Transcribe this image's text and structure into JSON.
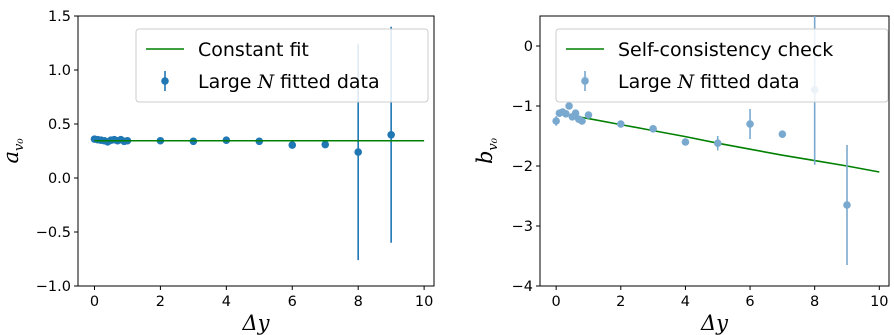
{
  "chart_data": [
    {
      "type": "scatter",
      "panel": "left",
      "title": "",
      "xlabel": "Δy",
      "ylabel_main": "a",
      "ylabel_sub": "v₀",
      "xlim": [
        -0.5,
        10.3
      ],
      "ylim": [
        -1.0,
        1.5
      ],
      "xticks": [
        0,
        2,
        4,
        6,
        8,
        10
      ],
      "xtick_labels": [
        "0",
        "2",
        "4",
        "6",
        "8",
        "10"
      ],
      "yticks": [
        -1.0,
        -0.5,
        0.0,
        0.5,
        1.0,
        1.5
      ],
      "ytick_labels": [
        "−1.0",
        "−0.5",
        "0.0",
        "0.5",
        "1.0",
        "1.5"
      ],
      "grid": false,
      "legend_position": "top-right",
      "legend": {
        "line_label": "Constant fit",
        "points_label_pre": "Large ",
        "points_label_var": "N",
        "points_label_post": " fitted data"
      },
      "colors": {
        "points": "#1f77b4",
        "line": "#008000"
      },
      "line": {
        "x": [
          0,
          10
        ],
        "y": [
          0.345,
          0.345
        ]
      },
      "points": [
        {
          "x": 0.0,
          "y": 0.36,
          "err": 0.01
        },
        {
          "x": 0.1,
          "y": 0.355,
          "err": 0.01
        },
        {
          "x": 0.2,
          "y": 0.35,
          "err": 0.01
        },
        {
          "x": 0.3,
          "y": 0.345,
          "err": 0.01
        },
        {
          "x": 0.4,
          "y": 0.335,
          "err": 0.01
        },
        {
          "x": 0.5,
          "y": 0.35,
          "err": 0.01
        },
        {
          "x": 0.6,
          "y": 0.355,
          "err": 0.01
        },
        {
          "x": 0.7,
          "y": 0.345,
          "err": 0.01
        },
        {
          "x": 0.8,
          "y": 0.355,
          "err": 0.01
        },
        {
          "x": 0.9,
          "y": 0.34,
          "err": 0.01
        },
        {
          "x": 1.0,
          "y": 0.345,
          "err": 0.01
        },
        {
          "x": 2.0,
          "y": 0.345,
          "err": 0.01
        },
        {
          "x": 3.0,
          "y": 0.34,
          "err": 0.01
        },
        {
          "x": 4.0,
          "y": 0.35,
          "err": 0.01
        },
        {
          "x": 5.0,
          "y": 0.34,
          "err": 0.01
        },
        {
          "x": 6.0,
          "y": 0.305,
          "err": 0.02
        },
        {
          "x": 7.0,
          "y": 0.31,
          "err": 0.02
        },
        {
          "x": 8.0,
          "y": 0.24,
          "err": 1.0
        },
        {
          "x": 9.0,
          "y": 0.4,
          "err": 1.0
        }
      ]
    },
    {
      "type": "scatter",
      "panel": "right",
      "title": "",
      "xlabel": "Δy",
      "ylabel_main": "b",
      "ylabel_sub": "v₀",
      "xlim": [
        -0.5,
        10.3
      ],
      "ylim": [
        -4.0,
        0.5
      ],
      "xticks": [
        0,
        2,
        4,
        6,
        8,
        10
      ],
      "xtick_labels": [
        "0",
        "2",
        "4",
        "6",
        "8",
        "10"
      ],
      "yticks": [
        -4,
        -3,
        -2,
        -1,
        0
      ],
      "ytick_labels": [
        "−4",
        "−3",
        "−2",
        "−1",
        "0"
      ],
      "grid": false,
      "legend_position": "top-right",
      "legend": {
        "line_label": "Self-consistency check",
        "points_label_pre": "Large ",
        "points_label_var": "N",
        "points_label_post": " fitted data"
      },
      "colors": {
        "points": "#7aa9cf",
        "line": "#008000"
      },
      "line": {
        "x": [
          0,
          1,
          2,
          3,
          4,
          5,
          6,
          7,
          8,
          9,
          10
        ],
        "y": [
          -1.12,
          -1.21,
          -1.31,
          -1.41,
          -1.51,
          -1.62,
          -1.72,
          -1.82,
          -1.91,
          -2.0,
          -2.1
        ]
      },
      "points": [
        {
          "x": 0.0,
          "y": -1.25,
          "err": 0.08
        },
        {
          "x": 0.1,
          "y": -1.12,
          "err": 0.05
        },
        {
          "x": 0.2,
          "y": -1.1,
          "err": 0.05
        },
        {
          "x": 0.3,
          "y": -1.13,
          "err": 0.05
        },
        {
          "x": 0.4,
          "y": -1.0,
          "err": 0.05
        },
        {
          "x": 0.5,
          "y": -1.18,
          "err": 0.05
        },
        {
          "x": 0.6,
          "y": -1.12,
          "err": 0.05
        },
        {
          "x": 0.7,
          "y": -1.22,
          "err": 0.05
        },
        {
          "x": 0.8,
          "y": -1.25,
          "err": 0.05
        },
        {
          "x": 0.9,
          "y": -0.55,
          "err": 0.12
        },
        {
          "x": 1.0,
          "y": -1.15,
          "err": 0.05
        },
        {
          "x": 2.0,
          "y": -1.3,
          "err": 0.05
        },
        {
          "x": 3.0,
          "y": -1.38,
          "err": 0.05
        },
        {
          "x": 4.0,
          "y": -1.6,
          "err": 0.06
        },
        {
          "x": 5.0,
          "y": -1.62,
          "err": 0.12
        },
        {
          "x": 6.0,
          "y": -1.3,
          "err": 0.25
        },
        {
          "x": 7.0,
          "y": -1.47,
          "err": 0.05
        },
        {
          "x": 8.0,
          "y": -0.73,
          "err": 1.25
        },
        {
          "x": 9.0,
          "y": -2.65,
          "err": 1.0
        }
      ]
    }
  ]
}
